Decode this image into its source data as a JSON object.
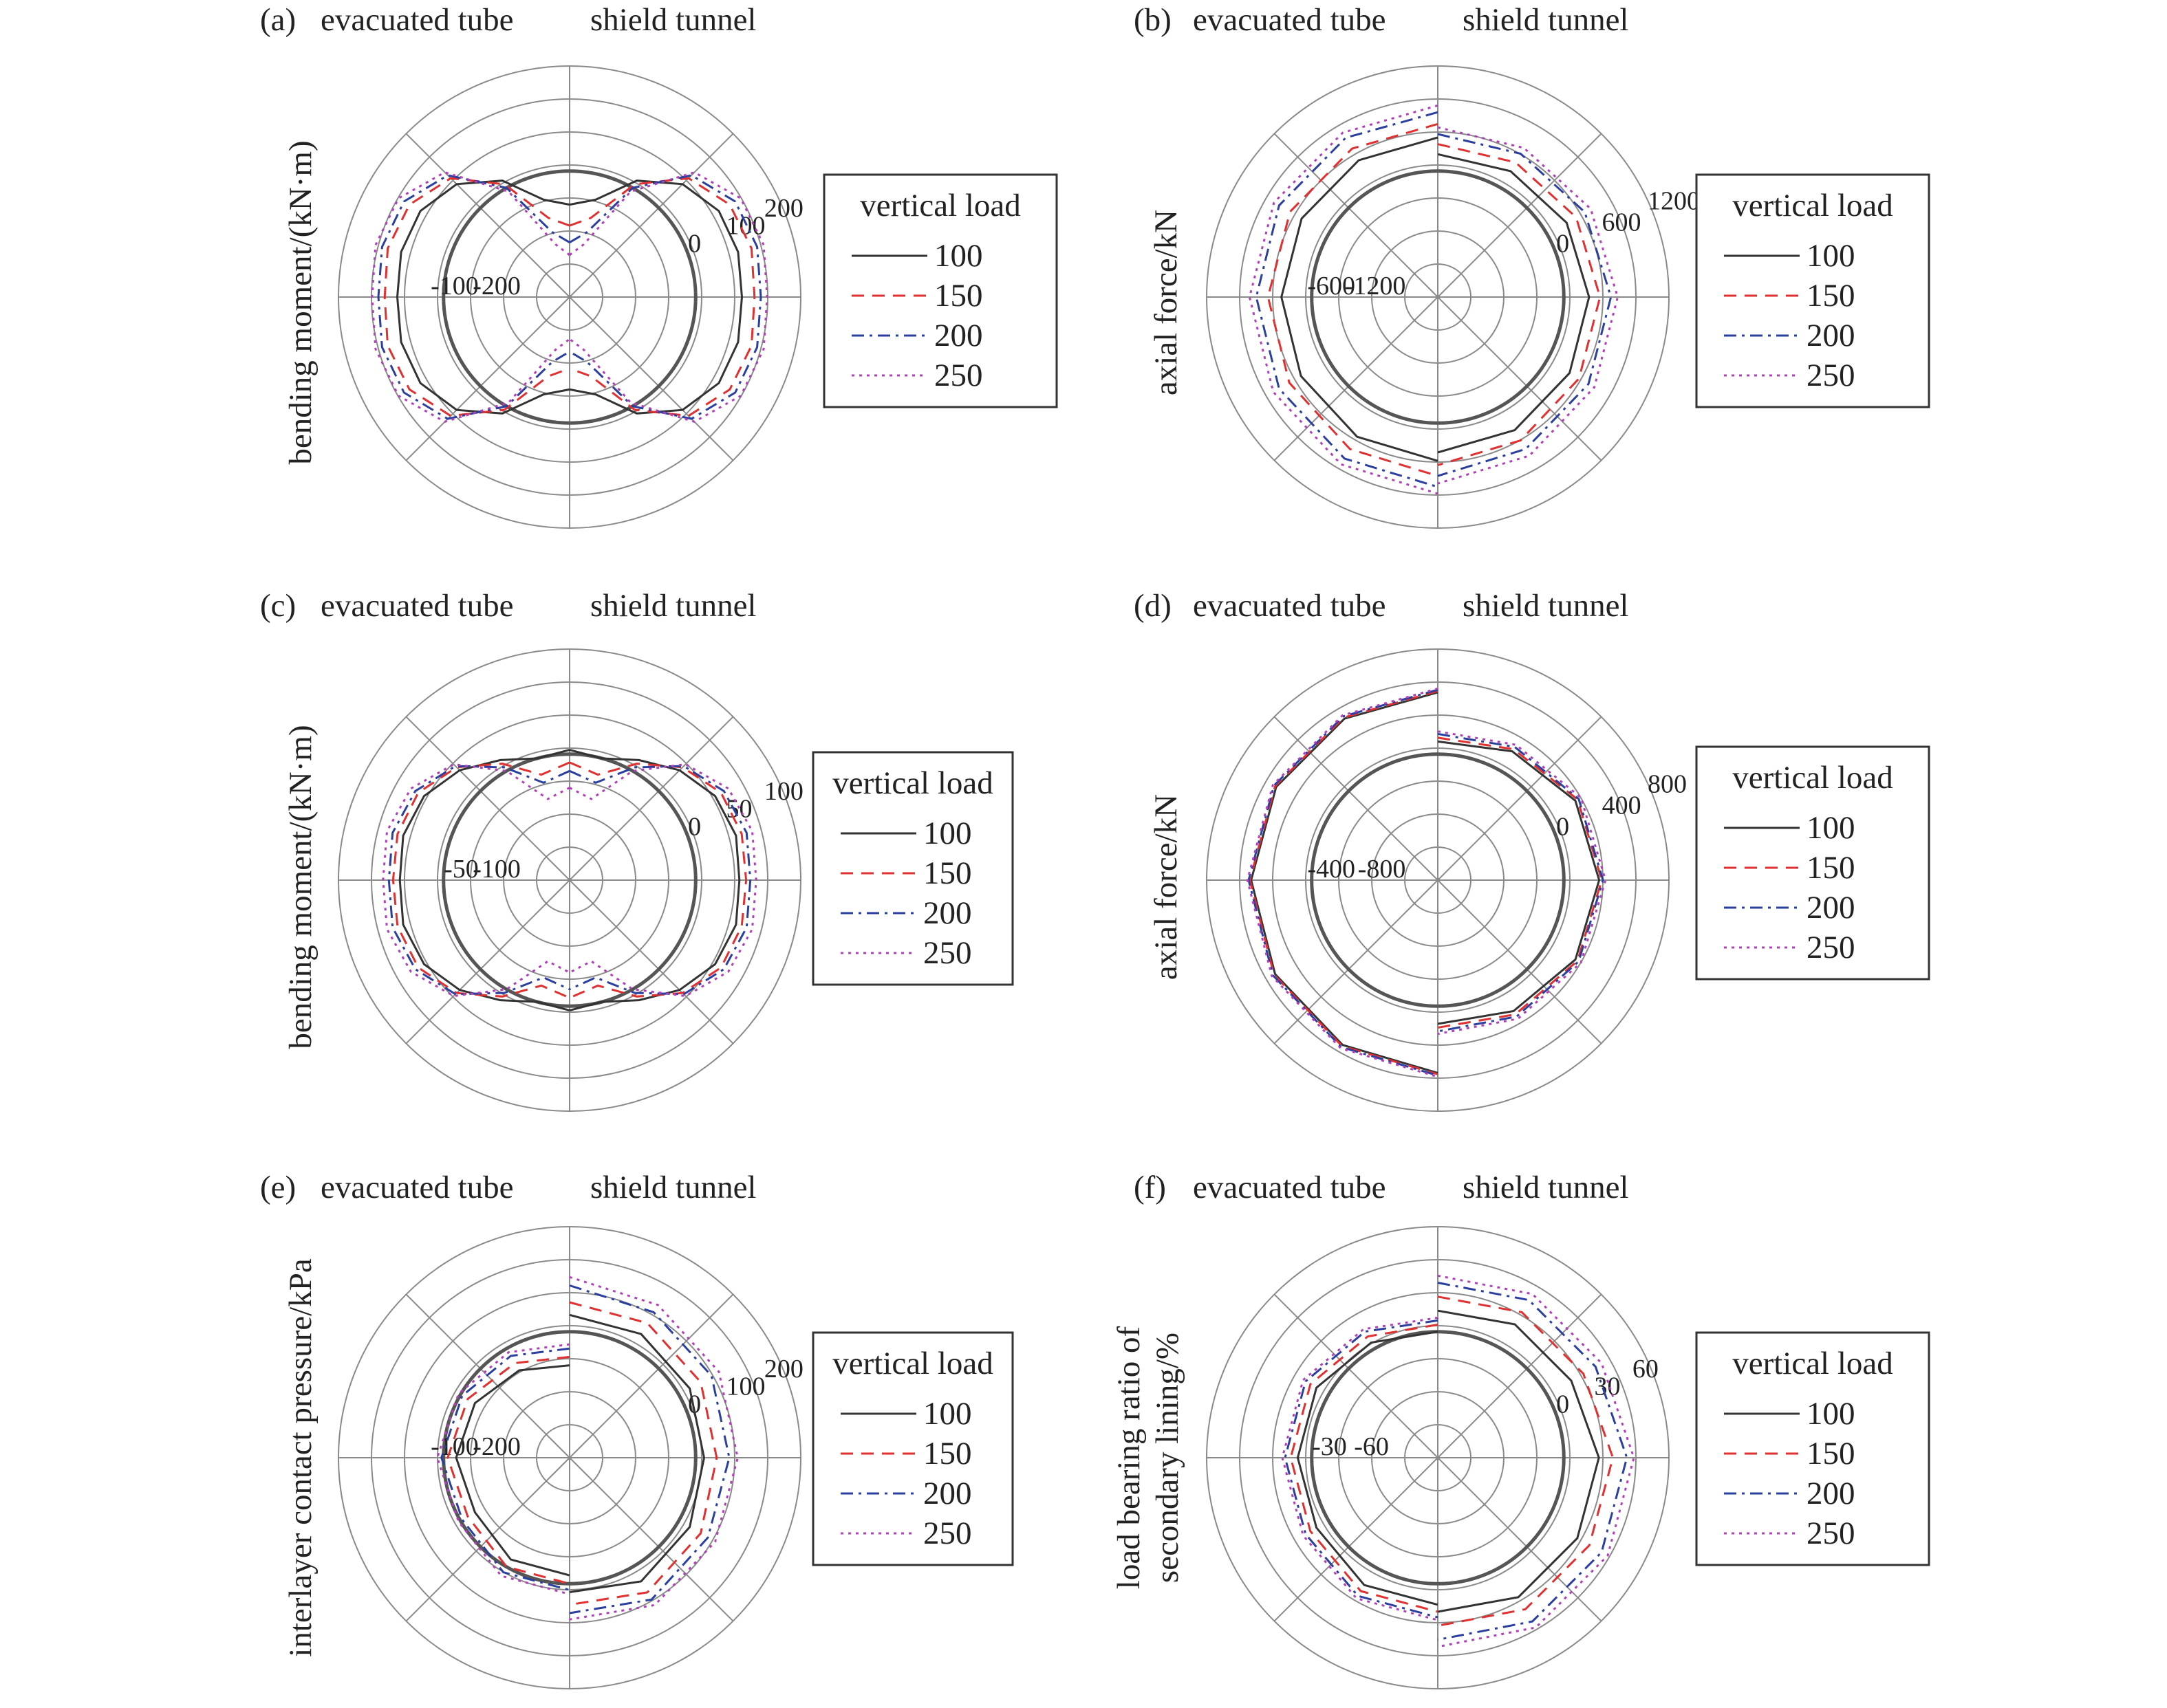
{
  "figure": {
    "side_labels": {
      "left": "evacuated tube",
      "right": "shield tunnel"
    },
    "legend_title": "vertical load",
    "series_names": [
      "100",
      "150",
      "200",
      "250"
    ],
    "series_colors": [
      "#333333",
      "#e03030",
      "#2a3f9e",
      "#b040b8"
    ],
    "series_dash": [
      "solid",
      "dashed",
      "dashdot",
      "dotted"
    ]
  },
  "chart_data": [
    {
      "panel": "(a)",
      "type": "polar",
      "ylabel": "bending moment/(kN·m)",
      "rlim": [
        -300,
        250
      ],
      "tick_labels": [
        "-200",
        "-100",
        "0",
        "100",
        "200"
      ],
      "tick_values": [
        -200,
        -100,
        0,
        100,
        200
      ],
      "angles_deg": [
        0,
        15,
        30,
        45,
        60,
        75,
        90,
        105,
        120,
        135,
        150,
        165,
        180
      ],
      "series": [
        {
          "name": "100",
          "left": [
            -80,
            -60,
            20,
            80,
            110,
            115,
            110,
            115,
            110,
            80,
            20,
            -60,
            -80
          ],
          "right": [
            -80,
            -60,
            20,
            80,
            110,
            115,
            110,
            115,
            110,
            80,
            20,
            -60,
            -80
          ]
        },
        {
          "name": "150",
          "left": [
            -130,
            -105,
            10,
            100,
            140,
            148,
            140,
            148,
            140,
            100,
            10,
            -105,
            -130
          ],
          "right": [
            -130,
            -105,
            10,
            100,
            140,
            148,
            140,
            148,
            140,
            100,
            10,
            -105,
            -130
          ]
        },
        {
          "name": "200",
          "left": [
            -170,
            -140,
            0,
            110,
            155,
            162,
            155,
            162,
            155,
            110,
            0,
            -140,
            -170
          ],
          "right": [
            -170,
            -140,
            0,
            110,
            155,
            162,
            155,
            162,
            155,
            110,
            0,
            -140,
            -170
          ]
        },
        {
          "name": "250",
          "left": [
            -200,
            -170,
            -10,
            120,
            170,
            178,
            170,
            178,
            170,
            120,
            -10,
            -170,
            -200
          ],
          "right": [
            -200,
            -170,
            -10,
            120,
            170,
            178,
            170,
            178,
            170,
            120,
            -10,
            -170,
            -200
          ]
        }
      ]
    },
    {
      "panel": "(b)",
      "type": "polar",
      "ylabel": "axial force/kN",
      "rlim": [
        -1500,
        1250
      ],
      "tick_labels": [
        "-1200",
        "-600",
        "0",
        "600",
        "1200"
      ],
      "tick_values": [
        -1200,
        -600,
        0,
        600,
        1200
      ],
      "angles_deg": [
        0,
        30,
        60,
        90,
        120,
        150,
        180
      ],
      "series": [
        {
          "name": "100",
          "left": [
            400,
            380,
            370,
            360,
            380,
            420,
            450
          ],
          "right": [
            200,
            230,
            270,
            300,
            310,
            330,
            350
          ]
        },
        {
          "name": "150",
          "left": [
            560,
            540,
            530,
            520,
            540,
            590,
            630
          ],
          "right": [
            320,
            350,
            400,
            430,
            440,
            470,
            500
          ]
        },
        {
          "name": "200",
          "left": [
            700,
            690,
            680,
            660,
            680,
            720,
            760
          ],
          "right": [
            440,
            470,
            520,
            560,
            570,
            590,
            630
          ]
        },
        {
          "name": "250",
          "left": [
            780,
            760,
            750,
            740,
            760,
            800,
            840
          ],
          "right": [
            520,
            550,
            600,
            640,
            650,
            680,
            720
          ]
        }
      ]
    },
    {
      "panel": "(c)",
      "type": "polar",
      "ylabel": "bending moment/(kN·m)",
      "rlim": [
        -150,
        125
      ],
      "tick_labels": [
        "-100",
        "-50",
        "0",
        "50",
        "100"
      ],
      "tick_values": [
        -100,
        -50,
        0,
        50,
        100
      ],
      "angles_deg": [
        0,
        15,
        30,
        45,
        60,
        75,
        90,
        105,
        120,
        135,
        150,
        165,
        180
      ],
      "series": [
        {
          "name": "100",
          "left": [
            5,
            0,
            15,
            35,
            50,
            55,
            52,
            55,
            50,
            35,
            15,
            0,
            5
          ],
          "right": [
            5,
            0,
            15,
            35,
            50,
            55,
            52,
            55,
            50,
            35,
            15,
            0,
            5
          ]
        },
        {
          "name": "150",
          "left": [
            -10,
            -20,
            10,
            40,
            58,
            62,
            60,
            62,
            58,
            40,
            10,
            -20,
            -10
          ],
          "right": [
            -10,
            -20,
            10,
            40,
            58,
            62,
            60,
            62,
            58,
            40,
            10,
            -20,
            -10
          ]
        },
        {
          "name": "200",
          "left": [
            -20,
            -30,
            5,
            42,
            62,
            68,
            65,
            68,
            62,
            42,
            5,
            -30,
            -20
          ],
          "right": [
            -20,
            -30,
            5,
            42,
            62,
            68,
            65,
            68,
            62,
            42,
            5,
            -30,
            -20
          ]
        },
        {
          "name": "250",
          "left": [
            -40,
            -50,
            0,
            45,
            68,
            75,
            72,
            75,
            68,
            45,
            0,
            -50,
            -40
          ],
          "right": [
            -40,
            -50,
            0,
            45,
            68,
            75,
            72,
            75,
            68,
            45,
            0,
            -50,
            -40
          ]
        }
      ]
    },
    {
      "panel": "(d)",
      "type": "polar",
      "ylabel": "axial force/kN",
      "rlim": [
        -1000,
        833
      ],
      "tick_labels": [
        "-800",
        "-400",
        "0",
        "400",
        "800"
      ],
      "tick_values": [
        -800,
        -400,
        0,
        400,
        800
      ],
      "angles_deg": [
        0,
        30,
        60,
        90,
        120,
        150,
        180
      ],
      "series": [
        {
          "name": "100",
          "left": [
            490,
            480,
            480,
            480,
            490,
            510,
            530
          ],
          "right": [
            100,
            180,
            260,
            280,
            260,
            200,
            140
          ]
        },
        {
          "name": "150",
          "left": [
            500,
            490,
            490,
            490,
            500,
            520,
            540
          ],
          "right": [
            130,
            200,
            280,
            300,
            280,
            230,
            170
          ]
        },
        {
          "name": "200",
          "left": [
            510,
            500,
            500,
            500,
            510,
            530,
            550
          ],
          "right": [
            160,
            220,
            290,
            310,
            290,
            250,
            200
          ]
        },
        {
          "name": "250",
          "left": [
            520,
            510,
            510,
            510,
            520,
            540,
            560
          ],
          "right": [
            180,
            240,
            310,
            330,
            310,
            270,
            220
          ]
        }
      ]
    },
    {
      "panel": "(e)",
      "type": "polar",
      "ylabel": "interlayer contact pressure/kPa",
      "rlim": [
        -300,
        250
      ],
      "tick_labels": [
        "-200",
        "-100",
        "0",
        "100",
        "200"
      ],
      "tick_values": [
        -200,
        -100,
        0,
        100,
        200
      ],
      "angles_deg": [
        0,
        30,
        60,
        90,
        120,
        150,
        180
      ],
      "series": [
        {
          "name": "100",
          "left": [
            -80,
            -60,
            -40,
            -30,
            -40,
            -20,
            -20
          ],
          "right": [
            40,
            40,
            30,
            20,
            30,
            40,
            20
          ]
        },
        {
          "name": "150",
          "left": [
            -60,
            -40,
            -20,
            -10,
            -20,
            0,
            0
          ],
          "right": [
            70,
            70,
            60,
            50,
            60,
            70,
            50
          ]
        },
        {
          "name": "200",
          "left": [
            -40,
            -20,
            -5,
            5,
            -5,
            15,
            15
          ],
          "right": [
            110,
            100,
            90,
            80,
            80,
            90,
            70
          ]
        },
        {
          "name": "250",
          "left": [
            -30,
            -10,
            5,
            15,
            5,
            25,
            25
          ],
          "right": [
            130,
            120,
            110,
            100,
            100,
            105,
            85
          ]
        }
      ]
    },
    {
      "panel": "(f)",
      "type": "polar",
      "ylabel": "load bearing ratio of secondary lining/%",
      "rlim": [
        -90,
        75
      ],
      "tick_labels": [
        "-60",
        "-30",
        "0",
        "30",
        "60"
      ],
      "tick_values": [
        -60,
        -30,
        0,
        30,
        60
      ],
      "angles_deg": [
        0,
        30,
        60,
        90,
        120,
        150,
        180
      ],
      "series": [
        {
          "name": "100",
          "left": [
            0,
            5,
            10,
            10,
            10,
            15,
            15
          ],
          "right": [
            15,
            20,
            20,
            25,
            25,
            25,
            20
          ]
        },
        {
          "name": "150",
          "left": [
            5,
            10,
            15,
            15,
            15,
            20,
            20
          ],
          "right": [
            25,
            30,
            30,
            35,
            35,
            35,
            30
          ]
        },
        {
          "name": "200",
          "left": [
            8,
            14,
            19,
            19,
            19,
            24,
            24
          ],
          "right": [
            35,
            40,
            40,
            45,
            45,
            45,
            40
          ]
        },
        {
          "name": "250",
          "left": [
            10,
            16,
            21,
            21,
            21,
            26,
            26
          ],
          "right": [
            40,
            45,
            45,
            50,
            50,
            50,
            45
          ]
        }
      ]
    }
  ]
}
